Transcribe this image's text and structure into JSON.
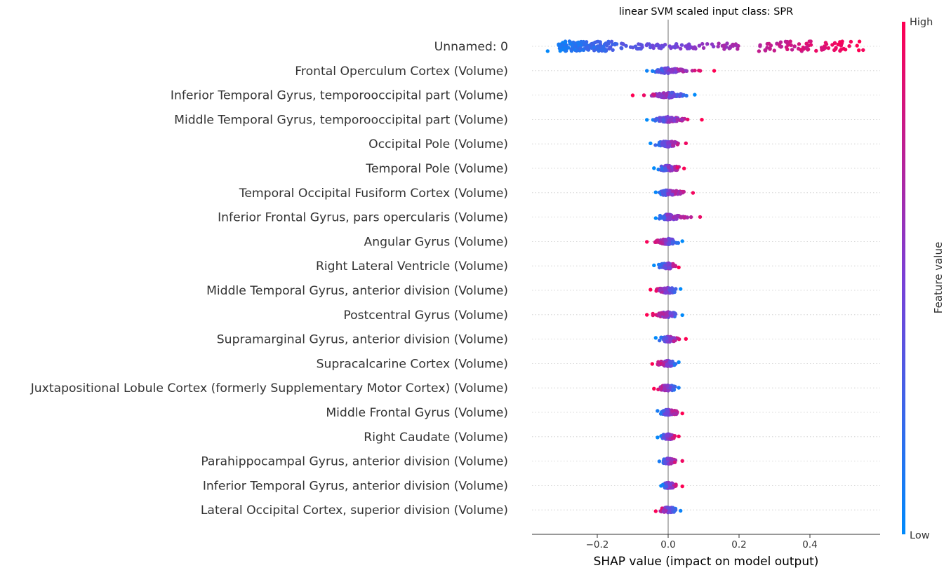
{
  "chart_data": {
    "type": "scatter",
    "title": "linear SVM scaled input class: SPR",
    "xlabel": "SHAP value (impact on model output)",
    "xlim": [
      -0.38,
      0.58
    ],
    "xticks": [
      -0.2,
      0.0,
      0.2,
      0.4
    ],
    "xtick_labels": [
      "−0.2",
      "0.0",
      "0.2",
      "0.4"
    ],
    "colorbar": {
      "label": "Feature value",
      "high_label": "High",
      "low_label": "Low",
      "low_color": "#008afb",
      "mid_color": "#7a3fd6",
      "high_color": "#ff0052"
    },
    "grid": "dotted horizontal row guides",
    "features": [
      {
        "name": "Unnamed: 0",
        "min": -0.34,
        "max": 0.55,
        "low_side": "left",
        "dense_min": -0.31,
        "dense_max": -0.16,
        "density": "wide"
      },
      {
        "name": "Frontal Operculum Cortex (Volume)",
        "min": -0.06,
        "max": 0.13,
        "low_side": "left"
      },
      {
        "name": "Inferior Temporal Gyrus, temporooccipital part (Volume)",
        "min": -0.1,
        "max": 0.075,
        "low_side": "right"
      },
      {
        "name": "Middle Temporal Gyrus, temporooccipital part (Volume)",
        "min": -0.06,
        "max": 0.095,
        "low_side": "left"
      },
      {
        "name": "Occipital Pole (Volume)",
        "min": -0.05,
        "max": 0.05,
        "low_side": "left"
      },
      {
        "name": "Temporal Pole (Volume)",
        "min": -0.04,
        "max": 0.045,
        "low_side": "left"
      },
      {
        "name": "Temporal Occipital Fusiform Cortex (Volume)",
        "min": -0.035,
        "max": 0.07,
        "low_side": "left"
      },
      {
        "name": "Inferior Frontal Gyrus, pars opercularis (Volume)",
        "min": -0.035,
        "max": 0.09,
        "low_side": "left"
      },
      {
        "name": "Angular Gyrus (Volume)",
        "min": -0.06,
        "max": 0.04,
        "low_side": "right"
      },
      {
        "name": "Right Lateral Ventricle (Volume)",
        "min": -0.04,
        "max": 0.03,
        "low_side": "left"
      },
      {
        "name": "Middle Temporal Gyrus, anterior division (Volume)",
        "min": -0.05,
        "max": 0.035,
        "low_side": "right"
      },
      {
        "name": "Postcentral Gyrus (Volume)",
        "min": -0.06,
        "max": 0.04,
        "low_side": "right"
      },
      {
        "name": "Supramarginal Gyrus, anterior division (Volume)",
        "min": -0.035,
        "max": 0.05,
        "low_side": "left"
      },
      {
        "name": "Supracalcarine Cortex (Volume)",
        "min": -0.045,
        "max": 0.03,
        "low_side": "right"
      },
      {
        "name": "Juxtapositional Lobule Cortex (formerly Supplementary Motor Cortex) (Volume)",
        "min": -0.04,
        "max": 0.03,
        "low_side": "right"
      },
      {
        "name": "Middle Frontal Gyrus (Volume)",
        "min": -0.03,
        "max": 0.04,
        "low_side": "left"
      },
      {
        "name": "Right Caudate (Volume)",
        "min": -0.03,
        "max": 0.03,
        "low_side": "left"
      },
      {
        "name": "Parahippocampal Gyrus, anterior division (Volume)",
        "min": -0.025,
        "max": 0.04,
        "low_side": "left"
      },
      {
        "name": "Inferior Temporal Gyrus, anterior division (Volume)",
        "min": -0.02,
        "max": 0.04,
        "low_side": "left"
      },
      {
        "name": "Lateral Occipital Cortex, superior division (Volume)",
        "min": -0.035,
        "max": 0.035,
        "low_side": "right"
      }
    ]
  }
}
